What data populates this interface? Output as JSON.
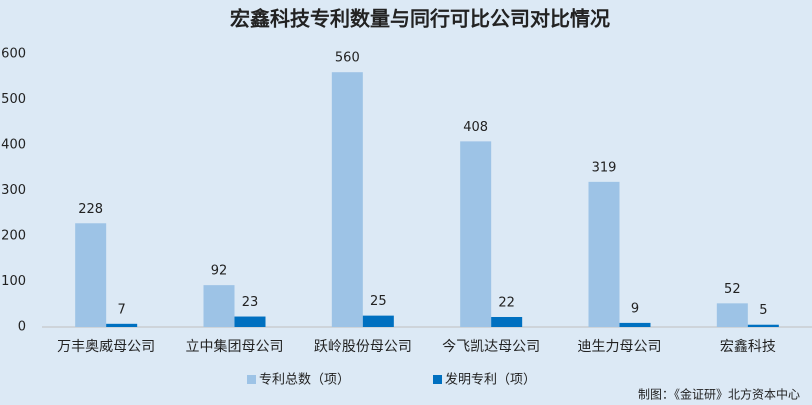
{
  "chart_data": {
    "type": "bar",
    "title": "宏鑫科技专利数量与同行可比公司对比情况",
    "categories": [
      "万丰奥威母公司",
      "立中集团母公司",
      "跃岭股份母公司",
      "今飞凯达母公司",
      "迪生力母公司",
      "宏鑫科技"
    ],
    "series": [
      {
        "name": "专利总数（项）",
        "color": "#9dc3e6",
        "values": [
          228,
          92,
          560,
          408,
          319,
          52
        ]
      },
      {
        "name": "发明专利（项）",
        "color": "#0070c0",
        "values": [
          7,
          23,
          25,
          22,
          9,
          5
        ]
      }
    ],
    "ylim": [
      0,
      600
    ],
    "yticks": [
      0,
      100,
      200,
      300,
      400,
      500,
      600
    ],
    "grid": false,
    "source": "制图：《金证研》北方资本中心"
  }
}
